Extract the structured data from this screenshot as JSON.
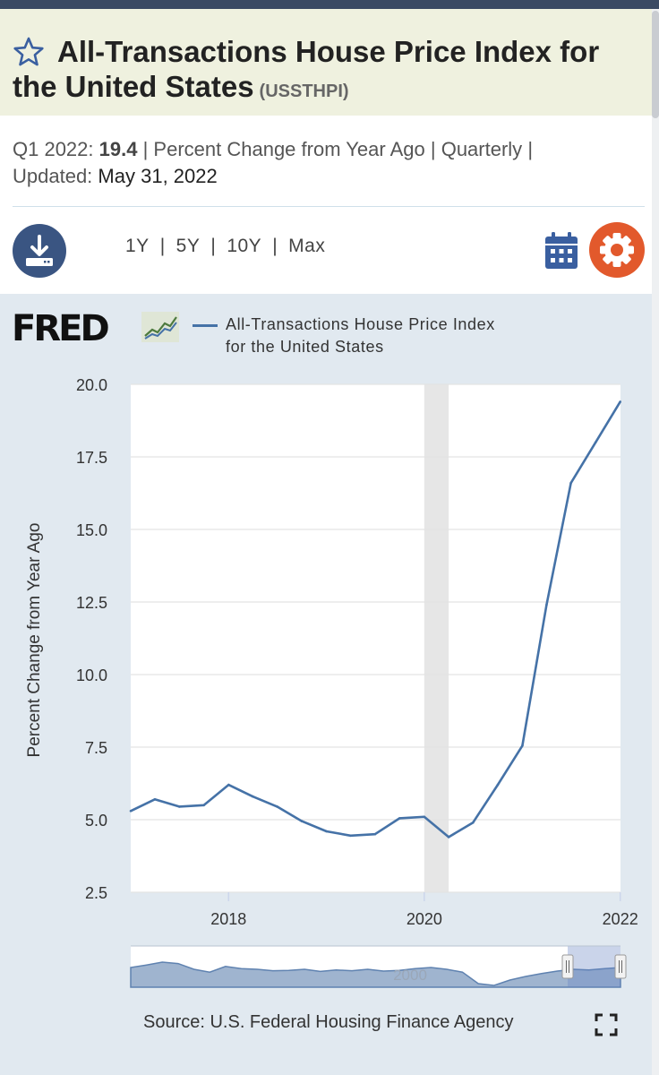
{
  "header": {
    "title": "All-Transactions House Price Index for the United States",
    "series_id": "(USSTHPI)"
  },
  "meta": {
    "period_label": "Q1 2022:",
    "value": "19.4",
    "units": "| Percent Change from Year Ago |",
    "frequency": "Quarterly",
    "frequency_sep": "|",
    "updated_label": "Updated:",
    "updated_value": "May 31, 2022"
  },
  "toolbar": {
    "ranges": [
      "1Y",
      "5Y",
      "10Y",
      "Max"
    ],
    "icons": [
      "download-icon",
      "calendar-icon",
      "gear-icon"
    ]
  },
  "colors": {
    "title_band": "#eff1df",
    "chart_bg": "#e1e9f0",
    "series_line": "#4572a7",
    "download_button": "#3a5582",
    "gear_button": "#e2592c",
    "recession_band": "#e6e6e6"
  },
  "logo": {
    "text": "FRED"
  },
  "chart_data": {
    "type": "line",
    "legend": [
      "All-Transactions House Price Index for the United States"
    ],
    "ylabel": "Percent Change from Year Ago",
    "ylim": [
      2.5,
      20.0
    ],
    "yticks": [
      "2.5",
      "5.0",
      "7.5",
      "10.0",
      "12.5",
      "15.0",
      "17.5",
      "20.0"
    ],
    "xticks": [
      "2018",
      "2020",
      "2022"
    ],
    "xlim": [
      "2017-01-01",
      "2022-01-01"
    ],
    "grid": "horizontal",
    "recession_shading": [
      "2020-01-01",
      "2020-04-01"
    ],
    "series": [
      {
        "name": "All-Transactions House Price Index for the United States",
        "x": [
          "2017-01-01",
          "2017-04-01",
          "2017-07-01",
          "2017-10-01",
          "2018-01-01",
          "2018-04-01",
          "2018-07-01",
          "2018-10-01",
          "2019-01-01",
          "2019-04-01",
          "2019-07-01",
          "2019-10-01",
          "2020-01-01",
          "2020-04-01",
          "2020-07-01",
          "2020-10-01",
          "2021-01-01",
          "2021-04-01",
          "2021-07-01",
          "2021-10-01",
          "2022-01-01"
        ],
        "values": [
          5.3,
          5.7,
          5.45,
          5.5,
          6.2,
          5.8,
          5.45,
          4.95,
          4.6,
          4.45,
          4.5,
          5.05,
          5.1,
          4.4,
          4.9,
          6.2,
          7.55,
          12.4,
          16.6,
          18.0,
          19.4
        ]
      }
    ],
    "navigator_label": "2000"
  },
  "footer": {
    "source": "Source: U.S. Federal Housing Finance Agency"
  }
}
